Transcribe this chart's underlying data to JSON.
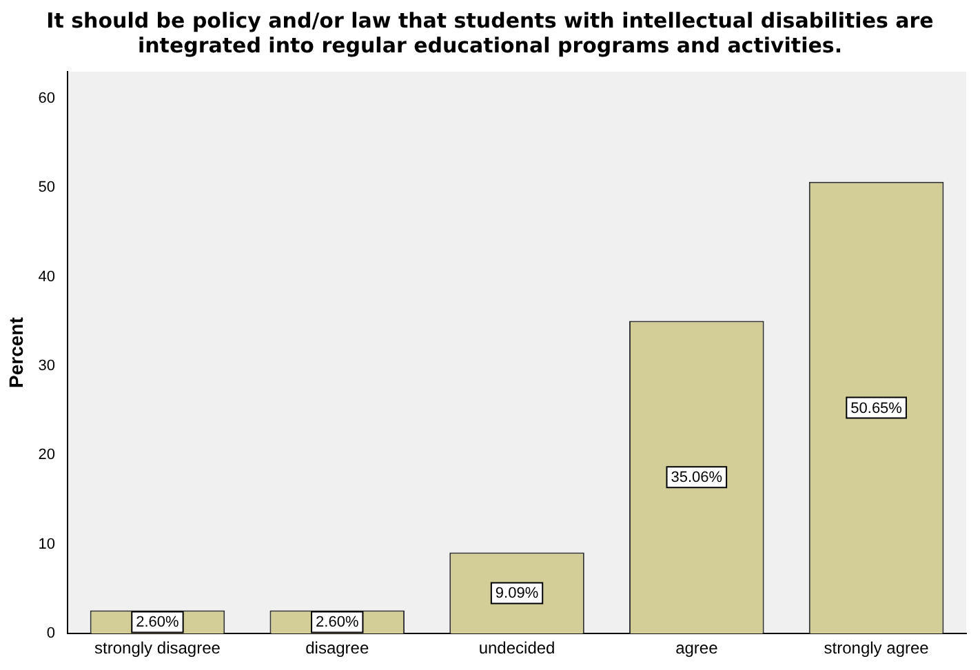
{
  "chart_data": {
    "type": "bar",
    "title": "It should be policy and/or law that students with intellectual disabilities are integrated into regular educational programs and activities.",
    "ylabel": "Percent",
    "categories": [
      "strongly disagree",
      "disagree",
      "undecided",
      "agree",
      "strongly agree"
    ],
    "values": [
      2.6,
      2.6,
      9.09,
      35.06,
      50.65
    ],
    "color": "#d3ce97",
    "value_labels": [
      "2.60%",
      "2.60%",
      "9.09%",
      "35.06%",
      "50.65%"
    ],
    "ylim": [
      0,
      63
    ],
    "yticks": [
      0,
      10,
      20,
      30,
      40,
      50,
      60
    ],
    "grid": false,
    "legend": false
  }
}
